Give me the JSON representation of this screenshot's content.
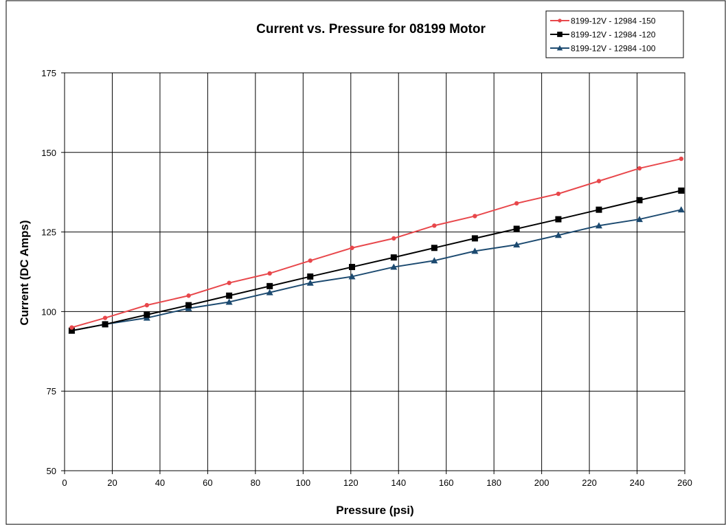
{
  "chart_data": {
    "type": "line",
    "title": "Current vs. Pressure for 08199 Motor",
    "xlabel": "Pressure (psi)",
    "ylabel": "Current (DC Amps)",
    "xlim": [
      0,
      260
    ],
    "ylim": [
      50,
      175
    ],
    "x_ticks": [
      0,
      20,
      40,
      60,
      80,
      100,
      120,
      140,
      160,
      180,
      200,
      220,
      240,
      260
    ],
    "y_ticks": [
      50,
      75,
      100,
      125,
      150,
      175
    ],
    "grid": true,
    "legend_position": "top-right",
    "x": [
      3,
      17,
      34.5,
      52,
      69,
      86,
      103,
      120.5,
      138,
      155,
      172,
      189.5,
      207,
      224,
      241,
      258.5
    ],
    "series": [
      {
        "name": "8199-12V - 12984 -150",
        "color": "#e8474b",
        "marker": "circle",
        "values": [
          95,
          98,
          102,
          105,
          109,
          112,
          116,
          120,
          123,
          127,
          130,
          134,
          137,
          141,
          145,
          148
        ]
      },
      {
        "name": "8199-12V - 12984 -120",
        "color": "#000000",
        "marker": "square",
        "values": [
          94,
          96,
          99,
          102,
          105,
          108,
          111,
          114,
          117,
          120,
          123,
          126,
          129,
          132,
          135,
          138
        ]
      },
      {
        "name": "8199-12V - 12984 -100",
        "color": "#1c4a70",
        "marker": "triangle",
        "values": [
          94,
          96,
          98,
          101,
          103,
          106,
          109,
          111,
          114,
          116,
          119,
          121,
          124,
          127,
          129,
          132
        ]
      }
    ]
  }
}
